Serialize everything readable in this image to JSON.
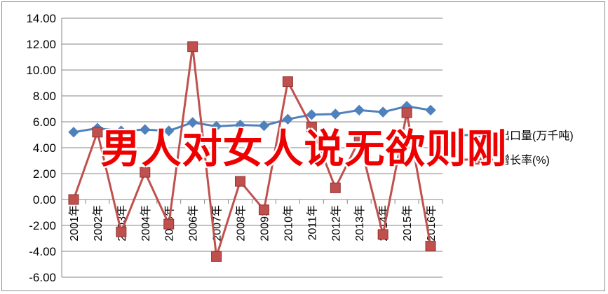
{
  "colors": {
    "series_1": "#4f81bd",
    "series_2": "#c0504d",
    "overlay": "#ee0000",
    "grid": "#858585"
  },
  "overlay_text": "男人对女人说无欲则刚",
  "chart_data": {
    "type": "line",
    "categories": [
      "2001年",
      "2002年",
      "2003年",
      "2004年",
      "2005年",
      "2006年",
      "2007年",
      "2008年",
      "2009年",
      "2010年",
      "2011年",
      "2012年",
      "2013年",
      "2014年",
      "2015年",
      "2016年"
    ],
    "series": [
      {
        "name": "出口量(万千吨)",
        "marker": "diamond",
        "values": [
          5.2,
          5.5,
          5.3,
          5.4,
          5.3,
          5.95,
          5.65,
          5.75,
          5.7,
          6.2,
          6.55,
          6.6,
          6.9,
          6.75,
          7.2,
          6.9
        ]
      },
      {
        "name": "增长率(%)",
        "marker": "square",
        "values": [
          0.0,
          5.2,
          -2.5,
          2.1,
          -1.9,
          11.8,
          -4.4,
          1.4,
          -0.8,
          9.1,
          5.6,
          0.9,
          4.6,
          -2.7,
          6.7,
          -3.6
        ]
      }
    ],
    "y_ticks": [
      "-6.00",
      "-4.00",
      "-2.00",
      "0.00",
      "2.00",
      "4.00",
      "6.00",
      "8.00",
      "10.00",
      "12.00",
      "14.00"
    ],
    "ylim": [
      -6,
      14
    ],
    "grid": true,
    "legend_position": "right"
  }
}
